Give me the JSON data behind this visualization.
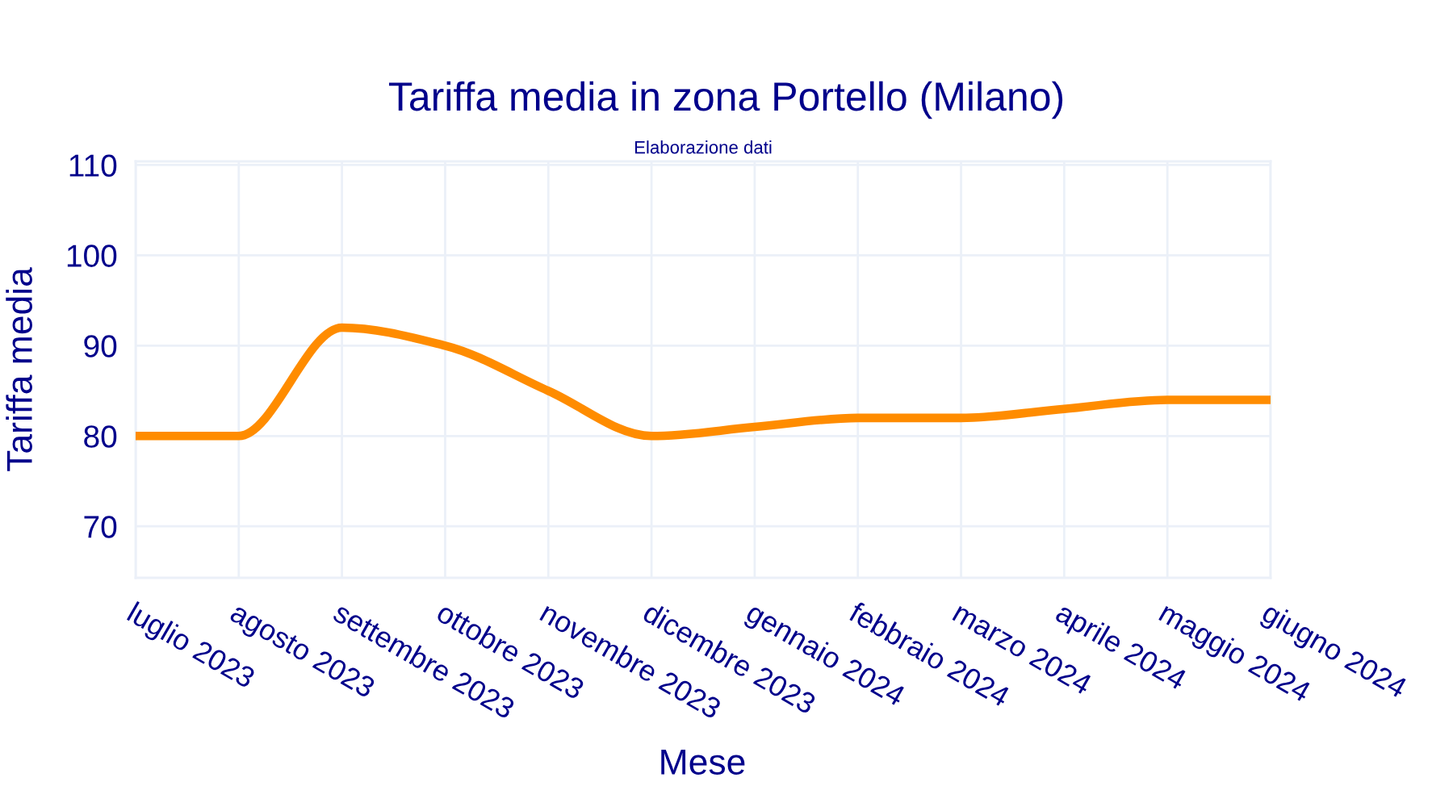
{
  "chart_data": {
    "type": "line",
    "title": "Tariffa media in zona Portello (Milano)",
    "annotations": [
      "Elaborazione dati"
    ],
    "xlabel": "Mese",
    "ylabel": "Tariffa media",
    "categories": [
      "luglio 2023",
      "agosto 2023",
      "settembre 2023",
      "ottobre 2023",
      "novembre 2023",
      "dicembre 2023",
      "gennaio 2024",
      "febbraio 2024",
      "marzo 2024",
      "aprile 2024",
      "maggio 2024",
      "giugno 2024"
    ],
    "values": [
      80,
      80,
      92,
      90,
      85,
      80,
      81,
      82,
      82,
      83,
      84,
      84
    ],
    "color": "#ff8c00",
    "ylim": [
      64.3,
      110.4
    ],
    "yticks": [
      70,
      80,
      90,
      100,
      110
    ],
    "grid": true,
    "legend": false,
    "marker": "none",
    "line_style": "solid"
  }
}
